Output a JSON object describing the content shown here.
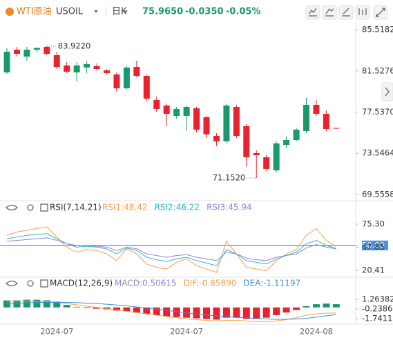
{
  "header": {
    "symbol": "WTI原油",
    "code": "USOIL",
    "period": "日K",
    "price": "75.9650",
    "change": "-0.0350",
    "change_pct": "-0.05%"
  },
  "chart_data": [
    {
      "type": "candlestick",
      "up_color": "#1a9a6c",
      "down_color": "#e8222e",
      "open": [
        81.38,
        83.58,
        82.91,
        83.58,
        83.85,
        83.05,
        82.05,
        81.38,
        81.85,
        81.98,
        81.58,
        81.18,
        79.84,
        81.91,
        81.04,
        78.71,
        78.17,
        77.17,
        77.17,
        77.9,
        77.04,
        75.23,
        74.7,
        78.04,
        76.17,
        73.56,
        73.16,
        71.89,
        74.36,
        74.83,
        75.7,
        78.24,
        77.37,
        76.0
      ],
      "high": [
        83.72,
        83.85,
        83.85,
        83.8,
        83.922,
        83.38,
        82.38,
        82.38,
        82.51,
        82.25,
        81.71,
        81.38,
        81.98,
        82.51,
        81.18,
        79.04,
        78.37,
        78.04,
        78.17,
        78.04,
        77.17,
        75.5,
        78.37,
        78.24,
        76.37,
        73.83,
        73.36,
        74.7,
        75.17,
        76.03,
        78.91,
        78.71,
        77.7,
        76.03
      ],
      "low": [
        81.24,
        82.91,
        82.51,
        83.32,
        83.05,
        81.71,
        81.31,
        80.51,
        81.31,
        81.58,
        81.18,
        79.51,
        79.71,
        80.91,
        78.57,
        77.57,
        76.17,
        76.9,
        75.7,
        75.57,
        75.03,
        74.23,
        74.5,
        75.03,
        72.23,
        71.152,
        71.83,
        71.69,
        74.03,
        74.7,
        75.5,
        77.17,
        75.7,
        75.9
      ],
      "close": [
        83.38,
        83.18,
        83.58,
        83.75,
        83.18,
        81.91,
        81.45,
        82.05,
        82.18,
        81.71,
        81.31,
        79.84,
        81.85,
        81.04,
        78.84,
        77.84,
        77.37,
        77.84,
        78.04,
        75.83,
        75.37,
        74.7,
        78.17,
        75.23,
        73.16,
        73.36,
        72.03,
        74.5,
        74.83,
        75.83,
        78.24,
        77.37,
        75.9,
        75.965
      ],
      "ylim": [
        69.02,
        87.86
      ],
      "yticks": [
        85.5182,
        81.5276,
        {
          "value": 77.537,
          "label": "77.5370"
        },
        73.5464,
        69.5558
      ],
      "annotations": [
        {
          "label": "83.9220",
          "value": 83.922
        },
        {
          "label": "71.1520",
          "value": 71.152
        }
      ]
    },
    {
      "type": "line",
      "title": "RSI(7,14,21)",
      "series": [
        {
          "name": "RSI1:48.42",
          "color": "#f5a04a",
          "values": [
            62,
            66,
            68,
            70,
            72,
            60,
            48,
            42,
            45,
            44,
            40,
            32,
            46,
            40,
            28,
            24,
            22,
            30,
            34,
            26,
            22,
            18,
            55,
            40,
            24,
            22,
            20,
            32,
            40,
            45,
            62,
            70,
            56,
            48.42
          ]
        },
        {
          "name": "RSI2:46.22",
          "color": "#2bb8d0",
          "values": [
            58,
            60,
            62,
            63,
            64,
            58,
            52,
            48,
            49,
            48,
            46,
            40,
            47,
            44,
            36,
            33,
            31,
            34,
            36,
            32,
            29,
            26,
            45,
            40,
            32,
            30,
            28,
            34,
            38,
            42,
            52,
            56,
            50,
            46.22
          ]
        },
        {
          "name": "RSI3:45.94",
          "color": "#9b7fd4",
          "values": [
            55,
            56,
            57,
            58,
            59,
            56,
            52,
            50,
            50,
            49,
            48,
            44,
            48,
            46,
            40,
            38,
            36,
            38,
            39,
            36,
            34,
            32,
            42,
            40,
            35,
            33,
            32,
            36,
            38,
            40,
            47,
            51,
            48,
            45.94
          ]
        }
      ],
      "ylim": [
        13.85,
        95.8
      ],
      "yticks": [
        {
          "value": 75.3,
          "label": "75.30"
        },
        {
          "value": 50,
          "label": "50.00"
        },
        47.85,
        20.41
      ],
      "reference_line": {
        "value": 50,
        "color": "#4a90e2"
      }
    },
    {
      "type": "macd",
      "title": "MACD(12,26,9)",
      "categories": [
        null,
        null,
        null,
        null,
        null,
        "2024-07",
        null,
        null,
        null,
        null,
        null,
        null,
        null,
        null,
        null,
        null,
        null,
        null,
        "2024-07",
        null,
        null,
        null,
        null,
        null,
        null,
        null,
        null,
        null,
        null,
        null,
        null,
        "2024-08",
        null,
        null
      ],
      "series": [
        {
          "name": "MACD:0.50615",
          "color": "#9b7fd4",
          "up_color": "#1a9a6c",
          "down_color": "#e8222e",
          "values": [
            1.1,
            1.1,
            1.2,
            1.2,
            1.1,
            0.9,
            0.4,
            0.1,
            -0.1,
            -0.2,
            -0.3,
            -0.5,
            -0.6,
            -0.8,
            -1.0,
            -1.2,
            -1.4,
            -1.5,
            -1.6,
            -1.7,
            -1.8,
            -1.9,
            -1.6,
            -1.6,
            -1.8,
            -1.8,
            -1.6,
            -1.2,
            -0.8,
            -0.4,
            0.2,
            0.5,
            0.6,
            0.50615
          ]
        },
        {
          "name": "DIF:-0.85890",
          "color": "#f5a04a",
          "values": [
            1.0,
            1.0,
            1.0,
            0.95,
            0.9,
            0.8,
            0.6,
            0.4,
            0.2,
            0,
            -0.2,
            -0.4,
            -0.6,
            -0.8,
            -1.0,
            -1.2,
            -1.4,
            -1.6,
            -1.8,
            -1.9,
            -2.0,
            -2.1,
            -2.0,
            -2.0,
            -2.1,
            -2.2,
            -2.2,
            -2.1,
            -1.9,
            -1.6,
            -1.2,
            -1.0,
            -0.9,
            -0.8589
          ]
        },
        {
          "name": "DEA:-1.11197",
          "color": "#3d8fd9",
          "values": [
            0.6,
            0.65,
            0.7,
            0.75,
            0.78,
            0.8,
            0.78,
            0.74,
            0.68,
            0.6,
            0.5,
            0.38,
            0.24,
            0.08,
            -0.1,
            -0.28,
            -0.46,
            -0.66,
            -0.84,
            -1.0,
            -1.16,
            -1.32,
            -1.45,
            -1.55,
            -1.64,
            -1.73,
            -1.8,
            -1.85,
            -1.85,
            -1.8,
            -1.7,
            -1.5,
            -1.3,
            -1.11197
          ]
        }
      ],
      "ylim": [
        -2.6,
        2.23
      ],
      "yticks": [
        1.26382,
        -0.23868,
        -1.74117
      ]
    }
  ]
}
